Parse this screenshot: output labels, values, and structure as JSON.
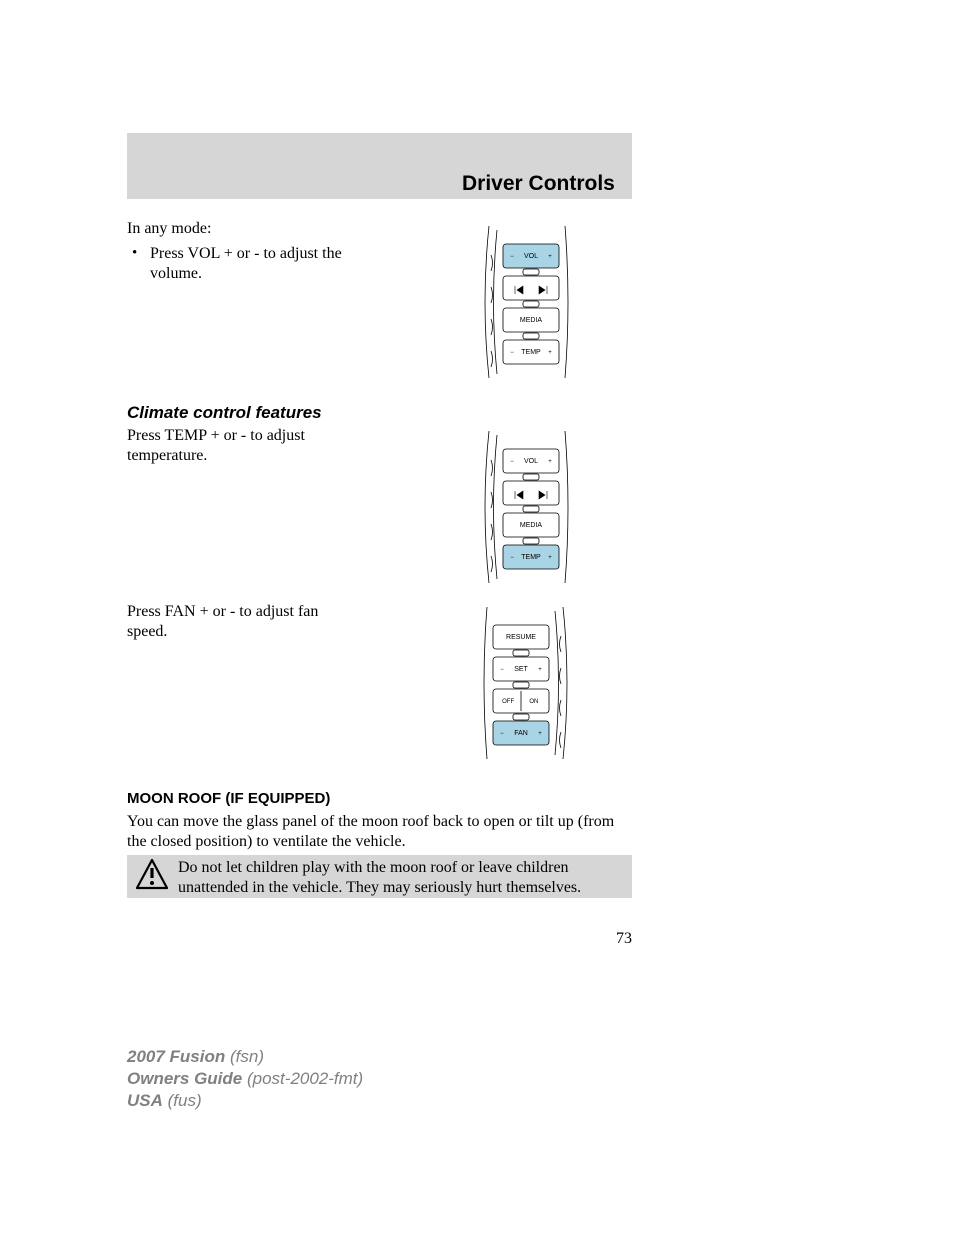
{
  "header": {
    "title": "Driver Controls"
  },
  "intro": "In any mode:",
  "bullet_marker": "•",
  "bullet_text": "Press VOL + or - to adjust the volume.",
  "climate": {
    "heading": "Climate control features",
    "temp_text": "Press TEMP + or - to adjust temperature.",
    "fan_text": "Press FAN + or - to adjust fan speed."
  },
  "moonroof": {
    "heading": "MOON ROOF (IF EQUIPPED)",
    "body": "You can move the glass panel of the moon roof back to open or tilt up (from the closed position) to ventilate the vehicle.",
    "warning": "Do not let children play with the moon roof or leave children unattended in the vehicle. They may seriously hurt themselves."
  },
  "page_number": "73",
  "footer": {
    "line1_bold": "2007 Fusion",
    "line1_rest": "(fsn)",
    "line2_bold": "Owners Guide",
    "line2_rest": "(post-2002-fmt)",
    "line3_bold": "USA",
    "line3_rest": "(fus)"
  },
  "diagrams": {
    "common_style": {
      "outline": "#000000",
      "outline_w": 0.8,
      "highlight": "#a9d4e6",
      "neutral": "#ffffff",
      "divider": "#000000"
    },
    "d1": {
      "rows": [
        {
          "label_left": "−",
          "label_mid": "VOL",
          "label_right": "+",
          "hl": true
        },
        {
          "type": "seek",
          "hl": false
        },
        {
          "label_mid": "MEDIA",
          "hl": false
        },
        {
          "label_left": "−",
          "label_mid": "TEMP",
          "label_right": "+",
          "hl": false
        }
      ]
    },
    "d2": {
      "rows": [
        {
          "label_left": "−",
          "label_mid": "VOL",
          "label_right": "+",
          "hl": false
        },
        {
          "type": "seek",
          "hl": false
        },
        {
          "label_mid": "MEDIA",
          "hl": false
        },
        {
          "label_left": "−",
          "label_mid": "TEMP",
          "label_right": "+",
          "hl": true
        }
      ]
    },
    "d3": {
      "rows": [
        {
          "label_mid": "RESUME",
          "hl": false
        },
        {
          "label_left": "−",
          "label_mid": "SET",
          "label_right": "+",
          "hl": false
        },
        {
          "label_left": "OFF",
          "label_right": "ON",
          "split": true,
          "hl": false
        },
        {
          "label_left": "−",
          "label_mid": "FAN",
          "label_right": "+",
          "hl": true
        }
      ]
    }
  }
}
